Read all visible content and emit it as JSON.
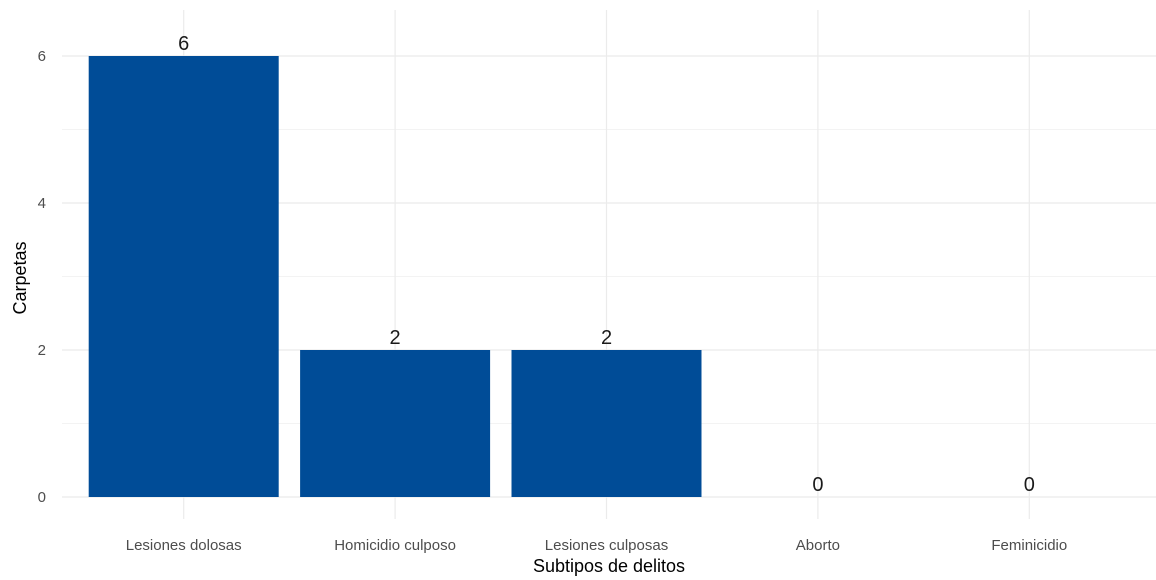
{
  "chart_data": {
    "type": "bar",
    "title": "",
    "xlabel": "Subtipos de delitos",
    "ylabel": "Carpetas",
    "categories": [
      "Lesiones dolosas",
      "Homicidio culposo",
      "Lesiones culposas",
      "Aborto",
      "Feminicidio"
    ],
    "values": [
      6,
      2,
      2,
      0,
      0
    ],
    "data_labels": [
      "6",
      "2",
      "2",
      "0",
      "0"
    ],
    "y_ticks": [
      0,
      2,
      4,
      6
    ],
    "y_tick_labels": [
      "0",
      "2",
      "4",
      "6"
    ],
    "ylim": [
      0,
      6.3
    ],
    "grid": true,
    "legend": "none",
    "colors": {
      "bar": "#004C97",
      "grid_major": "#ebebeb",
      "grid_minor": "#f3f3f3"
    }
  }
}
